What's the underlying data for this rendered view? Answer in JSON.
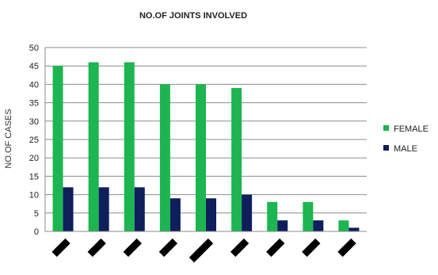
{
  "chart_data": {
    "type": "bar",
    "title": "NO.OF JOINTS INVOLVED",
    "ylabel": "NO.OF CASES",
    "xlabel": "",
    "ylim": [
      0,
      50
    ],
    "yticks": [
      0,
      5,
      10,
      15,
      20,
      25,
      30,
      35,
      40,
      45,
      50
    ],
    "grid": true,
    "legend_position": "right",
    "category_count": 9,
    "series": [
      {
        "name": "FEMALE",
        "color": "#1db551",
        "values": [
          45,
          46,
          46,
          40,
          40,
          39,
          8,
          8,
          3
        ]
      },
      {
        "name": "MALE",
        "color": "#0e1f5c",
        "values": [
          12,
          12,
          12,
          9,
          9,
          10,
          3,
          3,
          1
        ]
      }
    ]
  }
}
